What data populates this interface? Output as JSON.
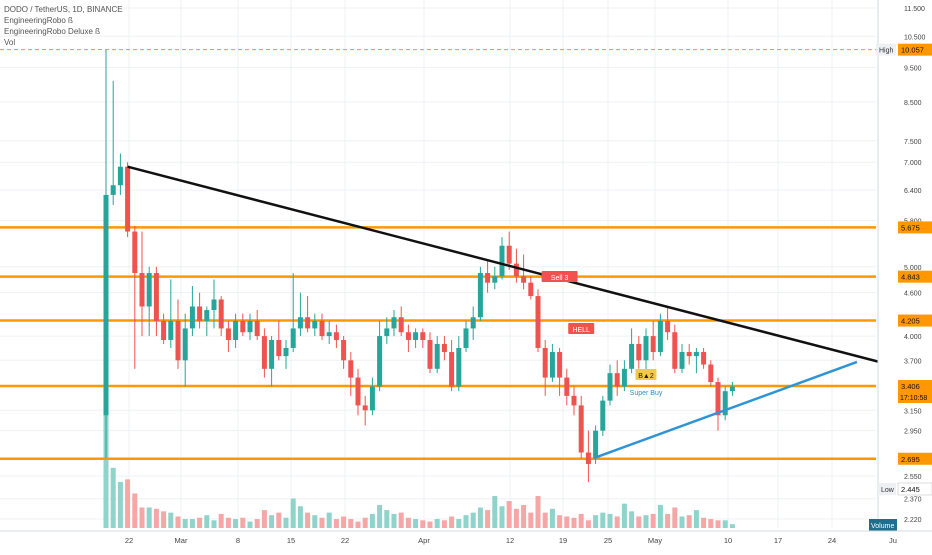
{
  "legend": {
    "symbol": "DODO / TetherUS, 1D, BINANCE",
    "ind1": "EngineeringRobo ß",
    "ind2": "EngineeringRobo Deluxe ß",
    "vol": "Vol"
  },
  "colors": {
    "up": "#26a69a",
    "down": "#ef5350",
    "upVol": "#8fd3cb",
    "downVol": "#f4a7a6",
    "level": "#ff9800",
    "highLine": "#ff9800",
    "trendDown": "#111111",
    "trendUp": "#2f94d6",
    "grid": "#eef1f5",
    "axisText": "#444444"
  },
  "chart_data": {
    "type": "candlestick",
    "y_scale": "log",
    "ylim": [
      2.2,
      11.5
    ],
    "y_ticks": [
      "11.500",
      "10.500",
      "9.500",
      "8.500",
      "7.500",
      "7.000",
      "6.400",
      "5.800",
      "5.000",
      "4.600",
      "4.000",
      "3.700",
      "3.150",
      "2.950",
      "2.550",
      "2.370",
      "2.220"
    ],
    "x_ticks": [
      "22",
      "Mar",
      "8",
      "15",
      "22",
      "Apr",
      "12",
      "19",
      "25",
      "May",
      "10",
      "17",
      "24",
      "Ju"
    ],
    "horizontal_levels": [
      "5.675",
      "4.843",
      "4.205",
      "3.406",
      "2.695"
    ],
    "high_label": "High",
    "high_value": "10.057",
    "low_label": "Low",
    "low_value": "2.445",
    "countdown": "17:10:58",
    "volume_label": "Volume",
    "signals": [
      {
        "text": "Sell 3",
        "kind": "sell"
      },
      {
        "text": "HELL",
        "kind": "sell"
      },
      {
        "text": "B▲2",
        "kind": "buy"
      },
      {
        "text": "Super Buy",
        "kind": "buy"
      }
    ],
    "candles": [
      {
        "o": 3.1,
        "h": 10.05,
        "l": 2.7,
        "c": 6.3
      },
      {
        "o": 6.3,
        "h": 9.1,
        "l": 6.1,
        "c": 6.5
      },
      {
        "o": 6.5,
        "h": 7.2,
        "l": 6.3,
        "c": 6.9
      },
      {
        "o": 6.9,
        "h": 7.0,
        "l": 5.5,
        "c": 5.6
      },
      {
        "o": 5.6,
        "h": 5.7,
        "l": 3.6,
        "c": 4.9
      },
      {
        "o": 4.9,
        "h": 5.6,
        "l": 4.0,
        "c": 4.4
      },
      {
        "o": 4.4,
        "h": 5.0,
        "l": 4.0,
        "c": 4.9
      },
      {
        "o": 4.9,
        "h": 5.0,
        "l": 4.0,
        "c": 4.2
      },
      {
        "o": 4.2,
        "h": 4.3,
        "l": 3.9,
        "c": 3.95
      },
      {
        "o": 3.95,
        "h": 4.8,
        "l": 3.85,
        "c": 4.2
      },
      {
        "o": 4.2,
        "h": 4.5,
        "l": 3.6,
        "c": 3.7
      },
      {
        "o": 3.7,
        "h": 4.3,
        "l": 3.4,
        "c": 4.1
      },
      {
        "o": 4.1,
        "h": 4.7,
        "l": 4.0,
        "c": 4.4
      },
      {
        "o": 4.4,
        "h": 4.6,
        "l": 4.1,
        "c": 4.2
      },
      {
        "o": 4.2,
        "h": 4.4,
        "l": 4.0,
        "c": 4.35
      },
      {
        "o": 4.35,
        "h": 4.8,
        "l": 4.1,
        "c": 4.5
      },
      {
        "o": 4.5,
        "h": 4.55,
        "l": 4.0,
        "c": 4.1
      },
      {
        "o": 4.1,
        "h": 4.2,
        "l": 3.8,
        "c": 3.95
      },
      {
        "o": 3.95,
        "h": 4.3,
        "l": 3.85,
        "c": 4.2
      },
      {
        "o": 4.2,
        "h": 4.3,
        "l": 4.0,
        "c": 4.05
      },
      {
        "o": 4.05,
        "h": 4.3,
        "l": 3.95,
        "c": 4.2
      },
      {
        "o": 4.2,
        "h": 4.35,
        "l": 3.95,
        "c": 4.0
      },
      {
        "o": 4.0,
        "h": 4.1,
        "l": 3.5,
        "c": 3.6
      },
      {
        "o": 3.6,
        "h": 4.0,
        "l": 3.4,
        "c": 3.95
      },
      {
        "o": 3.95,
        "h": 4.2,
        "l": 3.7,
        "c": 3.75
      },
      {
        "o": 3.75,
        "h": 3.95,
        "l": 3.6,
        "c": 3.85
      },
      {
        "o": 3.85,
        "h": 4.9,
        "l": 3.8,
        "c": 4.1
      },
      {
        "o": 4.1,
        "h": 4.6,
        "l": 4.0,
        "c": 4.25
      },
      {
        "o": 4.25,
        "h": 4.55,
        "l": 4.05,
        "c": 4.1
      },
      {
        "o": 4.1,
        "h": 4.3,
        "l": 4.0,
        "c": 4.2
      },
      {
        "o": 4.2,
        "h": 4.3,
        "l": 3.95,
        "c": 4.0
      },
      {
        "o": 4.0,
        "h": 4.2,
        "l": 3.9,
        "c": 4.05
      },
      {
        "o": 4.05,
        "h": 4.15,
        "l": 3.85,
        "c": 3.95
      },
      {
        "o": 3.95,
        "h": 4.0,
        "l": 3.6,
        "c": 3.7
      },
      {
        "o": 3.7,
        "h": 3.8,
        "l": 3.3,
        "c": 3.5
      },
      {
        "o": 3.5,
        "h": 3.6,
        "l": 3.1,
        "c": 3.2
      },
      {
        "o": 3.2,
        "h": 3.3,
        "l": 3.0,
        "c": 3.15
      },
      {
        "o": 3.15,
        "h": 3.5,
        "l": 3.1,
        "c": 3.4
      },
      {
        "o": 3.4,
        "h": 4.2,
        "l": 3.35,
        "c": 4.0
      },
      {
        "o": 4.0,
        "h": 4.25,
        "l": 3.9,
        "c": 4.1
      },
      {
        "o": 4.1,
        "h": 4.35,
        "l": 4.0,
        "c": 4.25
      },
      {
        "o": 4.25,
        "h": 4.4,
        "l": 4.0,
        "c": 4.05
      },
      {
        "o": 4.05,
        "h": 4.15,
        "l": 3.8,
        "c": 3.95
      },
      {
        "o": 3.95,
        "h": 4.1,
        "l": 3.85,
        "c": 4.05
      },
      {
        "o": 4.05,
        "h": 4.1,
        "l": 3.85,
        "c": 3.95
      },
      {
        "o": 3.95,
        "h": 4.05,
        "l": 3.55,
        "c": 3.6
      },
      {
        "o": 3.6,
        "h": 4.0,
        "l": 3.55,
        "c": 3.9
      },
      {
        "o": 3.9,
        "h": 4.0,
        "l": 3.7,
        "c": 3.8
      },
      {
        "o": 3.8,
        "h": 3.95,
        "l": 3.35,
        "c": 3.4
      },
      {
        "o": 3.4,
        "h": 4.0,
        "l": 3.35,
        "c": 3.85
      },
      {
        "o": 3.85,
        "h": 4.2,
        "l": 3.8,
        "c": 4.1
      },
      {
        "o": 4.1,
        "h": 4.4,
        "l": 3.95,
        "c": 4.25
      },
      {
        "o": 4.25,
        "h": 5.0,
        "l": 4.2,
        "c": 4.9
      },
      {
        "o": 4.9,
        "h": 5.1,
        "l": 4.6,
        "c": 4.75
      },
      {
        "o": 4.75,
        "h": 5.0,
        "l": 4.65,
        "c": 4.85
      },
      {
        "o": 4.85,
        "h": 5.5,
        "l": 4.8,
        "c": 5.35
      },
      {
        "o": 5.35,
        "h": 5.6,
        "l": 4.95,
        "c": 5.05
      },
      {
        "o": 5.05,
        "h": 5.3,
        "l": 4.75,
        "c": 4.85
      },
      {
        "o": 4.85,
        "h": 5.2,
        "l": 4.65,
        "c": 4.75
      },
      {
        "o": 4.75,
        "h": 4.85,
        "l": 4.5,
        "c": 4.55
      },
      {
        "o": 4.55,
        "h": 4.65,
        "l": 3.8,
        "c": 3.85
      },
      {
        "o": 3.85,
        "h": 3.95,
        "l": 3.3,
        "c": 3.5
      },
      {
        "o": 3.5,
        "h": 3.9,
        "l": 3.45,
        "c": 3.8
      },
      {
        "o": 3.8,
        "h": 3.85,
        "l": 3.3,
        "c": 3.5
      },
      {
        "o": 3.5,
        "h": 3.6,
        "l": 3.2,
        "c": 3.3
      },
      {
        "o": 3.3,
        "h": 3.4,
        "l": 3.1,
        "c": 3.2
      },
      {
        "o": 3.2,
        "h": 3.3,
        "l": 2.7,
        "c": 2.75
      },
      {
        "o": 2.75,
        "h": 2.95,
        "l": 2.5,
        "c": 2.65
      },
      {
        "o": 2.7,
        "h": 3.0,
        "l": 2.65,
        "c": 2.95
      },
      {
        "o": 2.95,
        "h": 3.3,
        "l": 2.9,
        "c": 3.25
      },
      {
        "o": 3.25,
        "h": 3.65,
        "l": 3.2,
        "c": 3.55
      },
      {
        "o": 3.55,
        "h": 3.7,
        "l": 3.3,
        "c": 3.4
      },
      {
        "o": 3.4,
        "h": 3.7,
        "l": 3.35,
        "c": 3.6
      },
      {
        "o": 3.6,
        "h": 4.1,
        "l": 3.55,
        "c": 3.9
      },
      {
        "o": 3.9,
        "h": 4.0,
        "l": 3.6,
        "c": 3.7
      },
      {
        "o": 3.7,
        "h": 4.1,
        "l": 3.6,
        "c": 4.0
      },
      {
        "o": 4.0,
        "h": 4.2,
        "l": 3.7,
        "c": 3.8
      },
      {
        "o": 3.8,
        "h": 4.3,
        "l": 3.75,
        "c": 4.2
      },
      {
        "o": 4.2,
        "h": 4.4,
        "l": 3.95,
        "c": 4.05
      },
      {
        "o": 4.05,
        "h": 4.15,
        "l": 3.55,
        "c": 3.6
      },
      {
        "o": 3.6,
        "h": 3.9,
        "l": 3.55,
        "c": 3.8
      },
      {
        "o": 3.8,
        "h": 3.9,
        "l": 3.65,
        "c": 3.75
      },
      {
        "o": 3.75,
        "h": 3.85,
        "l": 3.55,
        "c": 3.8
      },
      {
        "o": 3.8,
        "h": 3.85,
        "l": 3.6,
        "c": 3.65
      },
      {
        "o": 3.65,
        "h": 3.7,
        "l": 3.4,
        "c": 3.45
      },
      {
        "o": 3.45,
        "h": 3.5,
        "l": 2.95,
        "c": 3.1
      },
      {
        "o": 3.1,
        "h": 3.4,
        "l": 3.05,
        "c": 3.35
      },
      {
        "o": 3.35,
        "h": 3.45,
        "l": 3.3,
        "c": 3.4
      }
    ],
    "volume": [
      1.0,
      0.47,
      0.36,
      0.38,
      0.27,
      0.16,
      0.16,
      0.15,
      0.13,
      0.12,
      0.09,
      0.07,
      0.07,
      0.08,
      0.1,
      0.06,
      0.11,
      0.08,
      0.07,
      0.08,
      0.05,
      0.07,
      0.14,
      0.1,
      0.12,
      0.08,
      0.23,
      0.17,
      0.12,
      0.1,
      0.08,
      0.12,
      0.07,
      0.09,
      0.07,
      0.05,
      0.08,
      0.11,
      0.18,
      0.14,
      0.11,
      0.12,
      0.08,
      0.07,
      0.06,
      0.05,
      0.07,
      0.06,
      0.09,
      0.07,
      0.1,
      0.12,
      0.16,
      0.14,
      0.25,
      0.17,
      0.21,
      0.15,
      0.18,
      0.12,
      0.25,
      0.12,
      0.15,
      0.1,
      0.09,
      0.08,
      0.11,
      0.06,
      0.1,
      0.12,
      0.11,
      0.09,
      0.19,
      0.13,
      0.09,
      0.1,
      0.11,
      0.18,
      0.11,
      0.16,
      0.09,
      0.1,
      0.14,
      0.08,
      0.07,
      0.06,
      0.06,
      0.03
    ]
  }
}
